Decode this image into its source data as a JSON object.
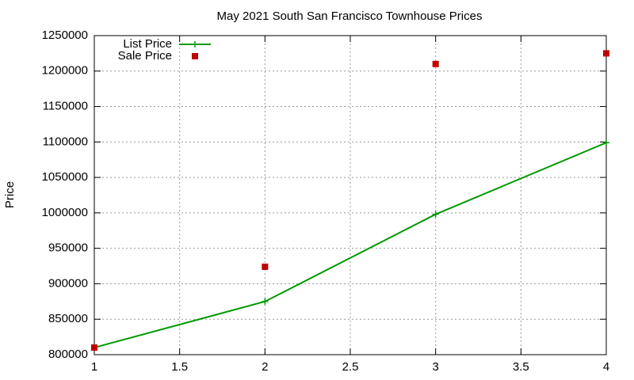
{
  "chart_data": {
    "type": "line",
    "title": "May 2021 South San Francisco Townhouse Prices",
    "y_label": "Price",
    "x": [
      1,
      2,
      3,
      4
    ],
    "series": [
      {
        "name": "List Price",
        "color": "#009900",
        "style": "linespoints",
        "values": [
          810000,
          875000,
          998000,
          1099000
        ]
      },
      {
        "name": "Sale Price",
        "color": "#c00000",
        "style": "points",
        "values": [
          810000,
          924000,
          1210000,
          1225000
        ]
      }
    ],
    "xlim": [
      1,
      4
    ],
    "xticks": [
      1,
      1.5,
      2,
      2.5,
      3,
      3.5,
      4
    ],
    "ylim": [
      800000,
      1250000
    ],
    "yticks": [
      800000,
      850000,
      900000,
      950000,
      1000000,
      1050000,
      1100000,
      1150000,
      1200000,
      1250000
    ],
    "grid": true,
    "legend": "top-left"
  }
}
